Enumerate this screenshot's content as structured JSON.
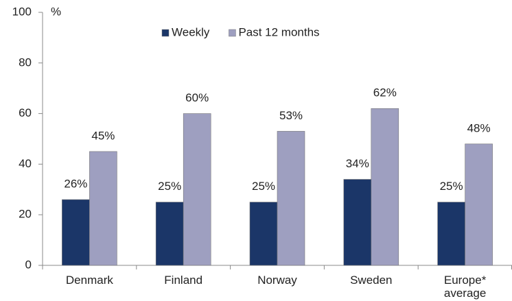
{
  "chart_data": {
    "type": "bar",
    "y_label": "%",
    "categories": [
      "Denmark",
      "Finland",
      "Norway",
      "Sweden",
      "Europe* average"
    ],
    "series": [
      {
        "name": "Weekly",
        "color": "#1b3668",
        "values": [
          26,
          25,
          25,
          34,
          25
        ],
        "value_labels": [
          "26%",
          "25%",
          "25%",
          "34%",
          "25%"
        ]
      },
      {
        "name": "Past 12 months",
        "color": "#9e9fc0",
        "values": [
          45,
          60,
          53,
          62,
          48
        ],
        "value_labels": [
          "45%",
          "60%",
          "53%",
          "62%",
          "48%"
        ]
      }
    ],
    "ylim": [
      0,
      100
    ],
    "yticks": [
      0,
      20,
      40,
      60,
      80,
      100
    ],
    "legend": "top"
  }
}
